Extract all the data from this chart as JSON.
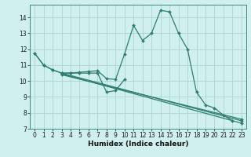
{
  "bg_color": "#cff0ee",
  "grid_color": "#aad4d0",
  "line_color": "#2e7d6e",
  "xlabel": "Humidex (Indice chaleur)",
  "ylim": [
    7,
    14.8
  ],
  "xlim": [
    -0.5,
    23.5
  ],
  "yticks": [
    7,
    8,
    9,
    10,
    11,
    12,
    13,
    14
  ],
  "xticks": [
    0,
    1,
    2,
    3,
    4,
    5,
    6,
    7,
    8,
    9,
    10,
    11,
    12,
    13,
    14,
    15,
    16,
    17,
    18,
    19,
    20,
    21,
    22,
    23
  ],
  "lines": [
    {
      "x": [
        0,
        1,
        2,
        3,
        4,
        5,
        6,
        7,
        8,
        9,
        10,
        11,
        12,
        13,
        14,
        15,
        16,
        17,
        18,
        19,
        20,
        21,
        22
      ],
      "y": [
        11.75,
        11.0,
        10.7,
        10.5,
        10.5,
        10.55,
        10.6,
        10.65,
        10.15,
        10.1,
        11.7,
        13.5,
        12.55,
        13.0,
        14.45,
        14.35,
        13.0,
        12.0,
        9.3,
        8.5,
        8.3,
        7.85,
        7.5
      ]
    },
    {
      "x": [
        0,
        1,
        2,
        3,
        4,
        5,
        6,
        7,
        8,
        9,
        10
      ],
      "y": [
        11.75,
        11.0,
        10.7,
        10.5,
        10.5,
        10.5,
        10.5,
        10.5,
        9.3,
        9.4,
        10.1
      ]
    },
    {
      "x": [
        3,
        23
      ],
      "y": [
        10.5,
        7.5
      ]
    },
    {
      "x": [
        3,
        23
      ],
      "y": [
        10.45,
        7.35
      ]
    },
    {
      "x": [
        3,
        23
      ],
      "y": [
        10.4,
        7.6
      ]
    }
  ],
  "title_fontsize": 7,
  "tick_fontsize": 5.5,
  "xlabel_fontsize": 6.5
}
